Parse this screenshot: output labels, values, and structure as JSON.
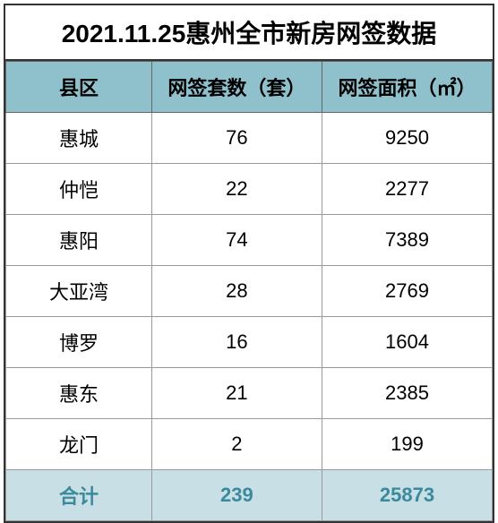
{
  "title": "2021.11.25惠州全市新房网签数据",
  "columns": [
    "县区",
    "网签套数（套）",
    "网签面积（㎡）"
  ],
  "rows": [
    {
      "district": "惠城",
      "count": "76",
      "area": "9250"
    },
    {
      "district": "仲恺",
      "count": "22",
      "area": "2277"
    },
    {
      "district": "惠阳",
      "count": "74",
      "area": "7389"
    },
    {
      "district": "大亚湾",
      "count": "28",
      "area": "2769"
    },
    {
      "district": "博罗",
      "count": "16",
      "area": "1604"
    },
    {
      "district": "惠东",
      "count": "21",
      "area": "2385"
    },
    {
      "district": "龙门",
      "count": "2",
      "area": "199"
    }
  ],
  "total": {
    "label": "合计",
    "count": "239",
    "area": "25873"
  },
  "colors": {
    "header_bg": "#8fc1cc",
    "total_bg": "#c7dfe5",
    "total_text": "#3b8a9c",
    "title_bg": "#ffffff"
  },
  "fonts": {
    "title_size": 28,
    "cell_size": 22
  }
}
